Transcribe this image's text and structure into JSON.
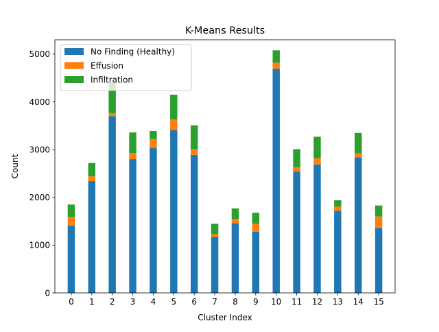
{
  "chart_data": {
    "type": "bar",
    "stacked": true,
    "title": "K-Means Results",
    "xlabel": "Cluster Index",
    "ylabel": "Count",
    "categories": [
      "0",
      "1",
      "2",
      "3",
      "4",
      "5",
      "6",
      "7",
      "8",
      "9",
      "10",
      "11",
      "12",
      "13",
      "14",
      "15"
    ],
    "ylim": [
      0,
      5300
    ],
    "yticks": [
      0,
      1000,
      2000,
      3000,
      4000,
      5000
    ],
    "grid": false,
    "legend_position": "top-left",
    "series": [
      {
        "name": "No Finding (Healthy)",
        "color": "#1f77b4",
        "values": [
          1410,
          2340,
          3700,
          2800,
          3030,
          3410,
          2890,
          1170,
          1460,
          1280,
          4690,
          2540,
          2690,
          1720,
          2840,
          1360
        ]
      },
      {
        "name": "Effusion",
        "color": "#ff7f0e",
        "values": [
          180,
          100,
          60,
          130,
          190,
          220,
          120,
          60,
          90,
          170,
          130,
          90,
          130,
          90,
          80,
          240
        ]
      },
      {
        "name": "Infiltration",
        "color": "#2ca02c",
        "values": [
          260,
          280,
          640,
          430,
          170,
          520,
          500,
          220,
          220,
          230,
          260,
          380,
          450,
          130,
          430,
          230
        ]
      }
    ]
  }
}
